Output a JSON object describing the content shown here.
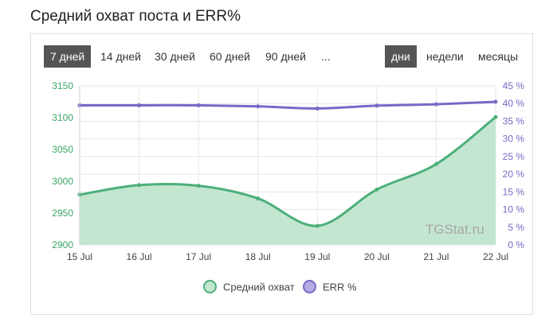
{
  "page": {
    "title": "Средний охват поста и ERR%"
  },
  "range_buttons": [
    {
      "label": "7 дней",
      "active": true
    },
    {
      "label": "14 дней",
      "active": false
    },
    {
      "label": "30 дней",
      "active": false
    },
    {
      "label": "60 дней",
      "active": false
    },
    {
      "label": "90 дней",
      "active": false
    },
    {
      "label": "...",
      "active": false
    }
  ],
  "period_buttons": [
    {
      "label": "дни",
      "active": true
    },
    {
      "label": "недели",
      "active": false
    },
    {
      "label": "месяцы",
      "active": false
    }
  ],
  "watermark": "TGStat.ru",
  "colors": {
    "reach_line": "#4caf7a",
    "reach_fill": "#c3e6d1",
    "err_line": "#7b68c6",
    "left_axis_text": "#3aa564",
    "right_axis_text": "#7b68c6",
    "grid": "#e6e6e6"
  },
  "chart_data": {
    "type": "area",
    "categories": [
      "15 Jul",
      "16 Jul",
      "17 Jul",
      "18 Jul",
      "19 Jul",
      "20 Jul",
      "21 Jul",
      "22 Jul"
    ],
    "series": [
      {
        "name": "Средний охват",
        "type": "area",
        "axis": "left",
        "values": [
          2979,
          2994,
          2993,
          2973,
          2930,
          2987,
          3027,
          3101
        ]
      },
      {
        "name": "ERR %",
        "type": "line",
        "axis": "right",
        "values": [
          39.5,
          39.5,
          39.5,
          39.2,
          38.6,
          39.4,
          39.8,
          40.5
        ]
      }
    ],
    "left_axis": {
      "ticks": [
        "3150",
        "3100",
        "3050",
        "3000",
        "2950",
        "2900"
      ],
      "range": [
        2900,
        3150
      ]
    },
    "right_axis": {
      "ticks": [
        "45 %",
        "40 %",
        "35 %",
        "30 %",
        "25 %",
        "20 %",
        "15 %",
        "10 %",
        "5 %",
        "0 %"
      ],
      "range": [
        0,
        45
      ]
    },
    "legend_position": "bottom",
    "grid": true
  }
}
